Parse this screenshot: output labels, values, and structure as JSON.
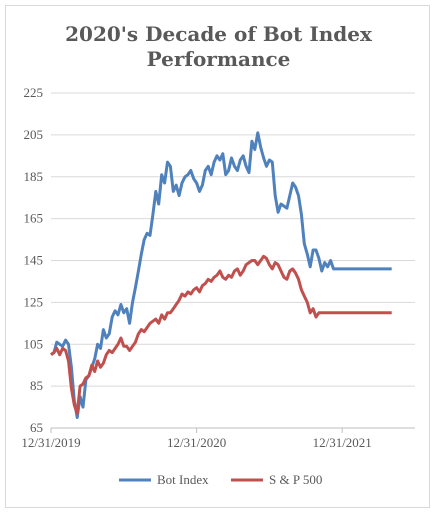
{
  "chart_data": {
    "type": "line",
    "title": "2020's Decade of Bot Index Performance",
    "xlabel": "",
    "ylabel": "",
    "ylim": [
      65,
      225
    ],
    "yticks": [
      65,
      85,
      105,
      125,
      145,
      165,
      185,
      205,
      225
    ],
    "xticks": [
      "12/31/2019",
      "12/31/2020",
      "12/31/2021"
    ],
    "grid": "horizontal",
    "legend": "bottom",
    "series": [
      {
        "name": "Bot Index",
        "color": "#4f81bd",
        "x": [
          0,
          0.02,
          0.04,
          0.06,
          0.08,
          0.1,
          0.12,
          0.14,
          0.16,
          0.18,
          0.2,
          0.22,
          0.24,
          0.26,
          0.28,
          0.3,
          0.32,
          0.34,
          0.36,
          0.38,
          0.4,
          0.42,
          0.44,
          0.46,
          0.48,
          0.5,
          0.52,
          0.54,
          0.56,
          0.58,
          0.6,
          0.62,
          0.64,
          0.66,
          0.68,
          0.7,
          0.72,
          0.74,
          0.76,
          0.78,
          0.8,
          0.82,
          0.84,
          0.86,
          0.88,
          0.9,
          0.92,
          0.94,
          0.96,
          0.98,
          1.0,
          1.02,
          1.04,
          1.06,
          1.08,
          1.1,
          1.12,
          1.14,
          1.16,
          1.18,
          1.2,
          1.22,
          1.24,
          1.26,
          1.28,
          1.3,
          1.32,
          1.34,
          1.36,
          1.38,
          1.4,
          1.42,
          1.44,
          1.46,
          1.48,
          1.5,
          1.52,
          1.54,
          1.56,
          1.58,
          1.6,
          1.62,
          1.64,
          1.66,
          1.68,
          1.7,
          1.72,
          1.74,
          1.76,
          1.78,
          1.8,
          1.82,
          1.84,
          1.86,
          1.88,
          1.9,
          1.92,
          1.94,
          1.96,
          1.98,
          2.0,
          2.02,
          2.04,
          2.06,
          2.08,
          2.1,
          2.12,
          2.14,
          2.16,
          2.18,
          2.2,
          2.22,
          2.24,
          2.26,
          2.28,
          2.3,
          2.32,
          2.34,
          2.36,
          2.38,
          2.4,
          2.42,
          2.44,
          2.46,
          2.48,
          2.5
        ],
        "values": [
          100,
          101,
          106,
          105,
          104,
          107,
          105,
          94,
          78,
          70,
          80,
          75,
          88,
          90,
          94,
          98,
          105,
          103,
          112,
          108,
          110,
          118,
          121,
          119,
          124,
          120,
          122,
          115,
          125,
          132,
          140,
          148,
          155,
          158,
          157,
          167,
          178,
          172,
          186,
          182,
          192,
          190,
          178,
          181,
          176,
          182,
          185,
          186,
          188,
          184,
          182,
          178,
          181,
          188,
          190,
          186,
          192,
          195,
          193,
          196,
          186,
          188,
          194,
          190,
          188,
          193,
          195,
          190,
          187,
          202,
          198,
          206,
          199,
          194,
          190,
          193,
          192,
          176,
          168,
          172,
          171,
          170,
          176,
          182,
          180,
          176,
          167,
          153,
          148,
          142,
          150,
          150,
          146,
          140,
          144,
          142,
          145,
          141,
          141,
          141,
          141,
          141,
          141,
          141,
          141,
          141,
          141,
          141,
          141,
          141,
          141,
          141,
          141,
          141,
          141,
          141,
          141,
          141,
          141,
          141,
          141,
          141,
          141,
          141,
          141,
          141
        ]
      },
      {
        "name": "S & P 500",
        "color": "#c0504d",
        "x": [
          0,
          0.02,
          0.04,
          0.06,
          0.08,
          0.1,
          0.12,
          0.14,
          0.16,
          0.18,
          0.2,
          0.22,
          0.24,
          0.26,
          0.28,
          0.3,
          0.32,
          0.34,
          0.36,
          0.38,
          0.4,
          0.42,
          0.44,
          0.46,
          0.48,
          0.5,
          0.52,
          0.54,
          0.56,
          0.58,
          0.6,
          0.62,
          0.64,
          0.66,
          0.68,
          0.7,
          0.72,
          0.74,
          0.76,
          0.78,
          0.8,
          0.82,
          0.84,
          0.86,
          0.88,
          0.9,
          0.92,
          0.94,
          0.96,
          0.98,
          1.0,
          1.02,
          1.04,
          1.06,
          1.08,
          1.1,
          1.12,
          1.14,
          1.16,
          1.18,
          1.2,
          1.22,
          1.24,
          1.26,
          1.28,
          1.3,
          1.32,
          1.34,
          1.36,
          1.38,
          1.4,
          1.42,
          1.44,
          1.46,
          1.48,
          1.5,
          1.52,
          1.54,
          1.56,
          1.58,
          1.6,
          1.62,
          1.64,
          1.66,
          1.68,
          1.7,
          1.72,
          1.74,
          1.76,
          1.78,
          1.8,
          1.82,
          1.84,
          1.86,
          1.88,
          1.9,
          1.92,
          1.94,
          1.96,
          1.98,
          2.0,
          2.02,
          2.04,
          2.06,
          2.08,
          2.1,
          2.12,
          2.14,
          2.16,
          2.18,
          2.2,
          2.22,
          2.24,
          2.26,
          2.28,
          2.3,
          2.32,
          2.34,
          2.36,
          2.38,
          2.4,
          2.42,
          2.44,
          2.46,
          2.48,
          2.5
        ],
        "values": [
          100,
          101,
          103,
          100,
          103,
          102,
          97,
          84,
          76,
          72,
          85,
          86,
          89,
          90,
          95,
          92,
          97,
          94,
          96,
          100,
          102,
          101,
          103,
          105,
          108,
          104,
          104,
          102,
          104,
          106,
          110,
          112,
          111,
          113,
          115,
          116,
          117,
          115,
          119,
          117,
          120,
          120,
          122,
          124,
          126,
          129,
          128,
          130,
          129,
          131,
          132,
          130,
          133,
          134,
          136,
          135,
          137,
          138,
          140,
          137,
          136,
          138,
          137,
          140,
          141,
          138,
          140,
          143,
          144,
          145,
          145,
          143,
          145,
          147,
          146,
          143,
          141,
          144,
          143,
          140,
          137,
          136,
          140,
          141,
          139,
          136,
          131,
          128,
          125,
          120,
          122,
          118,
          120,
          120,
          120,
          120,
          120,
          120,
          120,
          120,
          120,
          120,
          120,
          120,
          120,
          120,
          120,
          120,
          120,
          120,
          120,
          120,
          120,
          120,
          120,
          120,
          120,
          120,
          120,
          120,
          120,
          120,
          120,
          120,
          120,
          120
        ]
      }
    ]
  }
}
